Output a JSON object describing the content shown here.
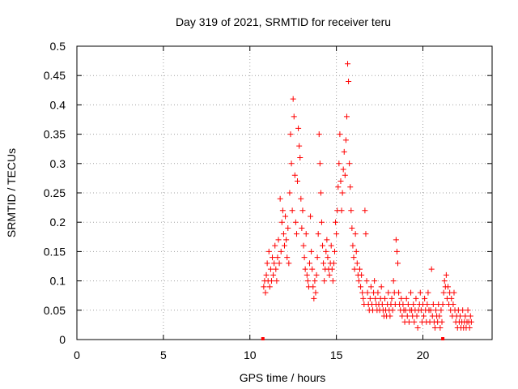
{
  "chart_data": {
    "type": "scatter",
    "title": "Day 319 of 2021, SRMTID for receiver teru",
    "xlabel": "GPS time / hours",
    "ylabel": "SRMTID / TECUs",
    "xlim": [
      0,
      24
    ],
    "ylim": [
      0,
      0.5
    ],
    "x_ticks": [
      0,
      5,
      10,
      15,
      20
    ],
    "x_tick_labels": [
      "0",
      "5",
      "10",
      "15",
      "20"
    ],
    "y_ticks": [
      0,
      0.05,
      0.1,
      0.15,
      0.2,
      0.25,
      0.3,
      0.35,
      0.4,
      0.45,
      0.5
    ],
    "y_tick_labels": [
      "0",
      "0.05",
      "0.1",
      "0.15",
      "0.2",
      "0.25",
      "0.3",
      "0.35",
      "0.4",
      "0.45",
      "0.5"
    ],
    "grid": true,
    "marker": "+",
    "color": "#ff0000",
    "series": [
      {
        "name": "SRMTID",
        "points": [
          [
            10.8,
            0.09
          ],
          [
            10.85,
            0.1
          ],
          [
            10.9,
            0.08
          ],
          [
            10.95,
            0.11
          ],
          [
            11.0,
            0.13
          ],
          [
            11.05,
            0.1
          ],
          [
            11.1,
            0.15
          ],
          [
            11.15,
            0.09
          ],
          [
            11.2,
            0.12
          ],
          [
            11.25,
            0.1
          ],
          [
            11.3,
            0.14
          ],
          [
            11.35,
            0.11
          ],
          [
            11.4,
            0.13
          ],
          [
            11.45,
            0.16
          ],
          [
            11.5,
            0.12
          ],
          [
            11.55,
            0.1
          ],
          [
            11.6,
            0.14
          ],
          [
            11.65,
            0.17
          ],
          [
            11.7,
            0.13
          ],
          [
            11.75,
            0.24
          ],
          [
            11.8,
            0.15
          ],
          [
            11.85,
            0.2
          ],
          [
            11.9,
            0.22
          ],
          [
            11.95,
            0.18
          ],
          [
            12.0,
            0.16
          ],
          [
            12.05,
            0.21
          ],
          [
            12.1,
            0.17
          ],
          [
            12.15,
            0.14
          ],
          [
            12.2,
            0.19
          ],
          [
            12.25,
            0.13
          ],
          [
            12.3,
            0.25
          ],
          [
            12.35,
            0.35
          ],
          [
            12.4,
            0.3
          ],
          [
            12.45,
            0.22
          ],
          [
            12.5,
            0.41
          ],
          [
            12.55,
            0.38
          ],
          [
            12.6,
            0.28
          ],
          [
            12.65,
            0.2
          ],
          [
            12.7,
            0.18
          ],
          [
            12.75,
            0.27
          ],
          [
            12.8,
            0.36
          ],
          [
            12.85,
            0.33
          ],
          [
            12.9,
            0.31
          ],
          [
            12.95,
            0.24
          ],
          [
            13.0,
            0.19
          ],
          [
            13.05,
            0.22
          ],
          [
            13.1,
            0.16
          ],
          [
            13.15,
            0.14
          ],
          [
            13.2,
            0.12
          ],
          [
            13.25,
            0.18
          ],
          [
            13.3,
            0.11
          ],
          [
            13.35,
            0.1
          ],
          [
            13.4,
            0.09
          ],
          [
            13.45,
            0.13
          ],
          [
            13.5,
            0.21
          ],
          [
            13.55,
            0.15
          ],
          [
            13.6,
            0.12
          ],
          [
            13.65,
            0.09
          ],
          [
            13.7,
            0.07
          ],
          [
            13.75,
            0.1
          ],
          [
            13.8,
            0.08
          ],
          [
            13.85,
            0.11
          ],
          [
            13.9,
            0.14
          ],
          [
            13.95,
            0.18
          ],
          [
            14.0,
            0.35
          ],
          [
            14.05,
            0.3
          ],
          [
            14.1,
            0.25
          ],
          [
            14.15,
            0.2
          ],
          [
            14.2,
            0.16
          ],
          [
            14.25,
            0.13
          ],
          [
            14.3,
            0.1
          ],
          [
            14.35,
            0.12
          ],
          [
            14.4,
            0.15
          ],
          [
            14.45,
            0.17
          ],
          [
            14.5,
            0.14
          ],
          [
            14.55,
            0.12
          ],
          [
            14.6,
            0.11
          ],
          [
            14.65,
            0.13
          ],
          [
            14.7,
            0.16
          ],
          [
            14.75,
            0.12
          ],
          [
            14.8,
            0.1
          ],
          [
            14.85,
            0.13
          ],
          [
            14.9,
            0.15
          ],
          [
            14.95,
            0.2
          ],
          [
            15.0,
            0.18
          ],
          [
            15.05,
            0.22
          ],
          [
            15.1,
            0.26
          ],
          [
            15.15,
            0.3
          ],
          [
            15.2,
            0.35
          ],
          [
            15.25,
            0.27
          ],
          [
            15.3,
            0.22
          ],
          [
            15.35,
            0.25
          ],
          [
            15.4,
            0.29
          ],
          [
            15.45,
            0.32
          ],
          [
            15.5,
            0.28
          ],
          [
            15.55,
            0.34
          ],
          [
            15.6,
            0.38
          ],
          [
            15.65,
            0.47
          ],
          [
            15.7,
            0.44
          ],
          [
            15.75,
            0.3
          ],
          [
            15.8,
            0.26
          ],
          [
            15.85,
            0.22
          ],
          [
            15.9,
            0.19
          ],
          [
            15.95,
            0.16
          ],
          [
            16.0,
            0.14
          ],
          [
            16.05,
            0.12
          ],
          [
            16.1,
            0.18
          ],
          [
            16.15,
            0.15
          ],
          [
            16.2,
            0.13
          ],
          [
            16.25,
            0.11
          ],
          [
            16.3,
            0.1
          ],
          [
            16.35,
            0.12
          ],
          [
            16.4,
            0.09
          ],
          [
            16.45,
            0.11
          ],
          [
            16.5,
            0.08
          ],
          [
            16.55,
            0.07
          ],
          [
            16.6,
            0.06
          ],
          [
            16.65,
            0.22
          ],
          [
            16.7,
            0.18
          ],
          [
            16.75,
            0.1
          ],
          [
            16.8,
            0.08
          ],
          [
            16.85,
            0.06
          ],
          [
            16.9,
            0.05
          ],
          [
            16.95,
            0.07
          ],
          [
            17.0,
            0.09
          ],
          [
            17.05,
            0.06
          ],
          [
            17.1,
            0.05
          ],
          [
            17.15,
            0.08
          ],
          [
            17.2,
            0.1
          ],
          [
            17.25,
            0.07
          ],
          [
            17.3,
            0.06
          ],
          [
            17.35,
            0.05
          ],
          [
            17.4,
            0.08
          ],
          [
            17.45,
            0.06
          ],
          [
            17.5,
            0.05
          ],
          [
            17.55,
            0.07
          ],
          [
            17.6,
            0.09
          ],
          [
            17.65,
            0.06
          ],
          [
            17.7,
            0.05
          ],
          [
            17.75,
            0.04
          ],
          [
            17.8,
            0.07
          ],
          [
            17.85,
            0.05
          ],
          [
            17.9,
            0.04
          ],
          [
            17.95,
            0.06
          ],
          [
            18.0,
            0.08
          ],
          [
            18.05,
            0.05
          ],
          [
            18.1,
            0.04
          ],
          [
            18.15,
            0.06
          ],
          [
            18.2,
            0.07
          ],
          [
            18.25,
            0.05
          ],
          [
            18.3,
            0.1
          ],
          [
            18.35,
            0.08
          ],
          [
            18.4,
            0.06
          ],
          [
            18.45,
            0.17
          ],
          [
            18.5,
            0.15
          ],
          [
            18.55,
            0.13
          ],
          [
            18.6,
            0.08
          ],
          [
            18.65,
            0.06
          ],
          [
            18.7,
            0.05
          ],
          [
            18.75,
            0.07
          ],
          [
            18.8,
            0.04
          ],
          [
            18.85,
            0.06
          ],
          [
            18.9,
            0.05
          ],
          [
            18.95,
            0.03
          ],
          [
            19.0,
            0.05
          ],
          [
            19.05,
            0.07
          ],
          [
            19.1,
            0.04
          ],
          [
            19.15,
            0.06
          ],
          [
            19.2,
            0.03
          ],
          [
            19.25,
            0.05
          ],
          [
            19.3,
            0.08
          ],
          [
            19.35,
            0.05
          ],
          [
            19.4,
            0.04
          ],
          [
            19.45,
            0.06
          ],
          [
            19.5,
            0.03
          ],
          [
            19.55,
            0.05
          ],
          [
            19.6,
            0.07
          ],
          [
            19.65,
            0.04
          ],
          [
            19.7,
            0.02
          ],
          [
            19.75,
            0.05
          ],
          [
            19.8,
            0.06
          ],
          [
            19.85,
            0.08
          ],
          [
            19.9,
            0.05
          ],
          [
            19.95,
            0.03
          ],
          [
            20.0,
            0.06
          ],
          [
            20.05,
            0.04
          ],
          [
            20.1,
            0.07
          ],
          [
            20.15,
            0.05
          ],
          [
            20.2,
            0.03
          ],
          [
            20.25,
            0.06
          ],
          [
            20.3,
            0.08
          ],
          [
            20.35,
            0.05
          ],
          [
            20.4,
            0.03
          ],
          [
            20.45,
            0.05
          ],
          [
            20.5,
            0.12
          ],
          [
            20.55,
            0.04
          ],
          [
            20.6,
            0.06
          ],
          [
            20.65,
            0.03
          ],
          [
            20.7,
            0.02
          ],
          [
            20.75,
            0.05
          ],
          [
            20.8,
            0.04
          ],
          [
            20.85,
            0.03
          ],
          [
            20.9,
            0.06
          ],
          [
            20.95,
            0.04
          ],
          [
            21.0,
            0.02
          ],
          [
            21.05,
            0.05
          ],
          [
            21.1,
            0.03
          ],
          [
            21.15,
            0.06
          ],
          [
            21.2,
            0.08
          ],
          [
            21.25,
            0.1
          ],
          [
            21.3,
            0.09
          ],
          [
            21.35,
            0.11
          ],
          [
            21.4,
            0.07
          ],
          [
            21.45,
            0.09
          ],
          [
            21.5,
            0.06
          ],
          [
            21.55,
            0.08
          ],
          [
            21.6,
            0.05
          ],
          [
            21.65,
            0.07
          ],
          [
            21.7,
            0.04
          ],
          [
            21.75,
            0.06
          ],
          [
            21.8,
            0.08
          ],
          [
            21.85,
            0.05
          ],
          [
            21.9,
            0.03
          ],
          [
            21.95,
            0.04
          ],
          [
            22.0,
            0.02
          ],
          [
            22.05,
            0.05
          ],
          [
            22.1,
            0.03
          ],
          [
            22.15,
            0.04
          ],
          [
            22.2,
            0.02
          ],
          [
            22.25,
            0.03
          ],
          [
            22.3,
            0.05
          ],
          [
            22.35,
            0.02
          ],
          [
            22.4,
            0.03
          ],
          [
            22.45,
            0.04
          ],
          [
            22.5,
            0.02
          ],
          [
            22.55,
            0.03
          ],
          [
            22.6,
            0.05
          ],
          [
            22.65,
            0.03
          ],
          [
            22.7,
            0.02
          ],
          [
            22.75,
            0.04
          ],
          [
            22.8,
            0.03
          ]
        ]
      }
    ],
    "outliers": [
      [
        10.75,
        0.0
      ],
      [
        21.15,
        0.0
      ]
    ]
  }
}
